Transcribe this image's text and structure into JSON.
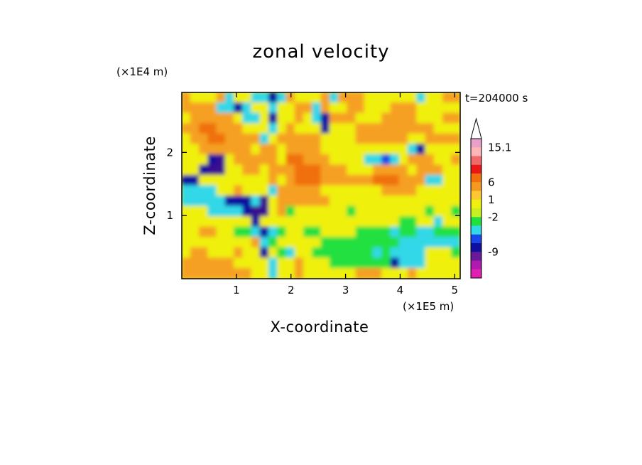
{
  "chart_data": {
    "type": "heatmap",
    "title": "zonal velocity",
    "xlabel": "X-coordinate",
    "ylabel": "Z-coordinate",
    "x_unit": "(×1E5 m)",
    "y_unit": "(×1E4 m)",
    "time_label": "t=204000 s",
    "xlim": [
      0,
      5.1
    ],
    "ylim": [
      0,
      2.95
    ],
    "x_ticks": [
      "1",
      "2",
      "3",
      "4",
      "5"
    ],
    "x_tick_values": [
      1,
      2,
      3,
      4,
      5
    ],
    "y_ticks": [
      "1",
      "2"
    ],
    "y_tick_values": [
      1,
      2
    ],
    "colorbar": {
      "labels": [
        "15.1",
        "6",
        "1",
        "-2",
        "-9"
      ],
      "label_values": [
        15.1,
        6,
        1,
        -2,
        -9
      ],
      "colors": [
        "#e8a0c8",
        "#ffb6b6",
        "#f06a6a",
        "#e81818",
        "#f07010",
        "#f59a20",
        "#ffc830",
        "#f0f010",
        "#c8f020",
        "#20e040",
        "#30d8e8",
        "#1848e8",
        "#1010a0",
        "#6a1a98",
        "#b01ab0",
        "#e020b0"
      ]
    },
    "field_rows_top_to_bottom": [
      "oyyyocyyccdcoyyyocoooyyyyyycyyoo",
      "ooooccdcyycyyoocoyyooyyyoooyyyyy",
      "yoooooyccydyyoycdoooyyyooooyyyoo",
      "ooOOoooyyycyoyyydyyyoooooooooyyy",
      "yooOOoooocyoooooyyyyooooooyyoooo",
      "yyooooooyooyooooyyyyyyyyyycdyyyy",
      "yyydDyoooooyOOoooyyyyccbcyoooyyo",
      "yydDDyyooyoooOOOoooyyyooooyoooyy",
      "ddyyyyyyyyoyoOOOooooooOOOoooccyy",
      "ccccyyoyyycoooooyyyyyyyooooyyyyy",
      "cccccdddcDyooooooyyyyyyyyyyyyyyy",
      "yyyccccdDDyogyyyyyygyyyyyyyygyyg",
      "yyyyyyyydyyyyyyyyyyyyyyyyggyycyy",
      "yyooyyggcdcgyyggyyyyggggcggccggg",
      "yyyyyyyyocgyyyyygggggggggccccccc",
      "yooyyyoyydygcyygggggggcgccccyyyg",
      "ooooooyyyycyyoyyygggggggdcccyyyy",
      "ooooooooyycyyoyyyyyyoooyyyoyyyyy"
    ]
  }
}
